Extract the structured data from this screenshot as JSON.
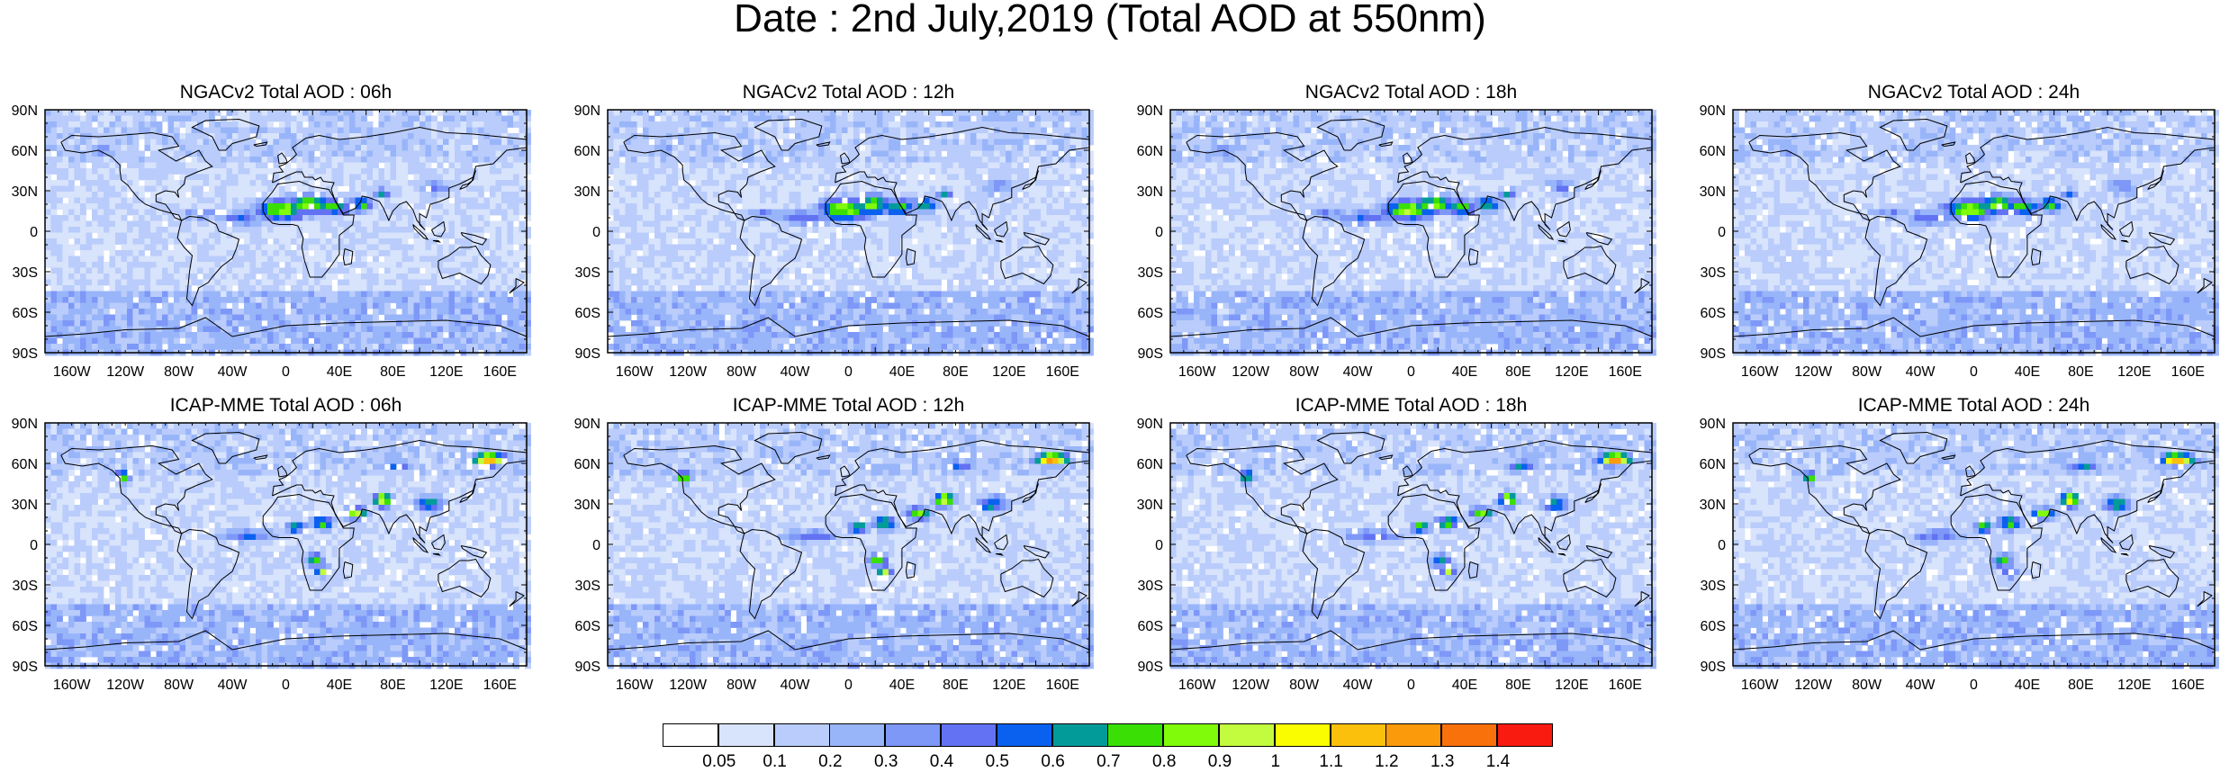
{
  "title": "Date : 2nd July,2019 (Total AOD at 550nm)",
  "panels": [
    {
      "title": "NGACv2 Total AOD : 06h",
      "model": "ngac"
    },
    {
      "title": "NGACv2 Total AOD : 12h",
      "model": "ngac"
    },
    {
      "title": "NGACv2 Total AOD : 18h",
      "model": "ngac"
    },
    {
      "title": "NGACv2 Total AOD : 24h",
      "model": "ngac"
    },
    {
      "title": "ICAP-MME Total AOD : 06h",
      "model": "icap"
    },
    {
      "title": "ICAP-MME Total AOD : 12h",
      "model": "icap"
    },
    {
      "title": "ICAP-MME Total AOD : 18h",
      "model": "icap"
    },
    {
      "title": "ICAP-MME Total AOD : 24h",
      "model": "icap"
    }
  ],
  "lat_labels": [
    "90N",
    "60N",
    "30N",
    "0",
    "30S",
    "60S",
    "90S"
  ],
  "lon_labels": [
    "160W",
    "120W",
    "80W",
    "40W",
    "0",
    "40E",
    "80E",
    "120E",
    "160E"
  ],
  "colorbar": {
    "colors": [
      "#ffffff",
      "#d8e3fc",
      "#b9ccfb",
      "#99b5fa",
      "#7e98f8",
      "#6272f2",
      "#0a61ef",
      "#039b9a",
      "#39df05",
      "#80fb0a",
      "#c3fb3f",
      "#fafd00",
      "#fbc00c",
      "#fb9a0b",
      "#f9710b",
      "#f91b0f"
    ],
    "labels": [
      "0.05",
      "0.1",
      "0.2",
      "0.3",
      "0.4",
      "0.5",
      "0.6",
      "0.7",
      "0.8",
      "0.9",
      "1",
      "1.1",
      "1.2",
      "1.3",
      "1.4"
    ]
  }
}
